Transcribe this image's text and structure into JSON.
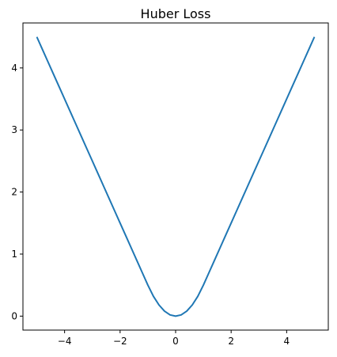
{
  "chart_data": {
    "type": "line",
    "title": "Huber Loss",
    "xlabel": "",
    "ylabel": "",
    "xlim": [
      -5.5,
      5.5
    ],
    "ylim": [
      -0.225,
      4.725
    ],
    "xticks": [
      -4,
      -2,
      0,
      2,
      4
    ],
    "xtick_labels": [
      "−4",
      "−2",
      "0",
      "2",
      "4"
    ],
    "yticks": [
      0,
      1,
      2,
      3,
      4
    ],
    "ytick_labels": [
      "0",
      "1",
      "2",
      "3",
      "4"
    ],
    "grid": false,
    "legend": "none",
    "series": [
      {
        "color": "#1f77b4",
        "x": [
          -5.0,
          -4.8,
          -4.6,
          -4.4,
          -4.2,
          -4.0,
          -3.8,
          -3.6,
          -3.4,
          -3.2,
          -3.0,
          -2.8,
          -2.6,
          -2.4,
          -2.2,
          -2.0,
          -1.8,
          -1.6,
          -1.4,
          -1.2,
          -1.0,
          -0.8,
          -0.6,
          -0.4,
          -0.2,
          0.0,
          0.2,
          0.4,
          0.6,
          0.8,
          1.0,
          1.2,
          1.4,
          1.6,
          1.8,
          2.0,
          2.2,
          2.4,
          2.6,
          2.8,
          3.0,
          3.2,
          3.4,
          3.6,
          3.8,
          4.0,
          4.2,
          4.4,
          4.6,
          4.8,
          5.0
        ],
        "y": [
          4.5,
          4.3,
          4.1,
          3.9,
          3.7,
          3.5,
          3.3,
          3.1,
          2.9,
          2.7,
          2.5,
          2.3,
          2.1,
          1.9,
          1.7,
          1.5,
          1.3,
          1.1,
          0.9,
          0.7,
          0.5,
          0.32,
          0.18,
          0.08,
          0.02,
          0.0,
          0.02,
          0.08,
          0.18,
          0.32,
          0.5,
          0.7,
          0.9,
          1.1,
          1.3,
          1.5,
          1.7,
          1.9,
          2.1,
          2.3,
          2.5,
          2.7,
          2.9,
          3.1,
          3.3,
          3.5,
          3.7,
          3.9,
          4.1,
          4.3,
          4.5
        ]
      }
    ]
  }
}
